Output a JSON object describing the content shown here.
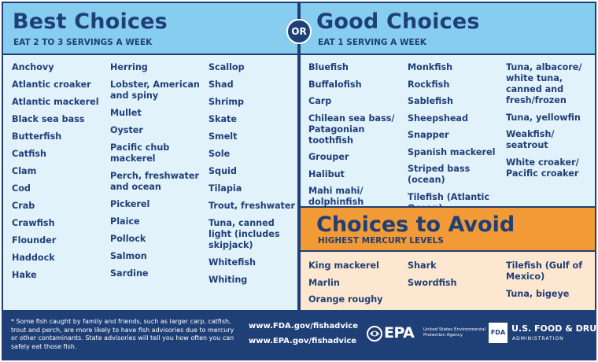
{
  "best": {
    "title": "Best Choices",
    "subtitle": "EAT 2 TO 3 SERVINGS A WEEK",
    "columns": [
      [
        "Anchovy",
        "Atlantic croaker",
        "Atlantic mackerel",
        "Black sea bass",
        "Butterfish",
        "Catfish",
        "Clam",
        "Cod",
        "Crab",
        "Crawfish",
        "Flounder",
        "Haddock",
        "Hake"
      ],
      [
        "Herring",
        "Lobster, American and spiny",
        "Mullet",
        "Oyster",
        "Pacific chub mackerel",
        "Perch, freshwater and ocean",
        "Pickerel",
        "Plaice",
        "Pollock",
        "Salmon",
        "Sardine"
      ],
      [
        "Scallop",
        "Shad",
        "Shrimp",
        "Skate",
        "Smelt",
        "Sole",
        "Squid",
        "Tilapia",
        "Trout, freshwater",
        "Tuna, canned light (includes skipjack)",
        "Whitefish",
        "Whiting"
      ]
    ]
  },
  "or_label": "OR",
  "good": {
    "title": "Good Choices",
    "subtitle": "EAT 1 SERVING A WEEK",
    "columns": [
      [
        "Bluefish",
        "Buffalofish",
        "Carp",
        "Chilean sea bass/ Patagonian toothfish",
        "Grouper",
        "Halibut",
        "Mahi mahi/ dolphinfish"
      ],
      [
        "Monkfish",
        "Rockfish",
        "Sablefish",
        "Sheepshead",
        "Snapper",
        "Spanish mackerel",
        "Striped bass (ocean)",
        "Tilefish (Atlantic Ocean)"
      ],
      [
        "Tuna, albacore/ white tuna, canned and fresh/frozen",
        "Tuna, yellowfin",
        "Weakfish/ seatrout",
        "White croaker/ Pacific croaker"
      ]
    ]
  },
  "avoid": {
    "title": "Choices to Avoid",
    "subtitle": "HIGHEST MERCURY LEVELS",
    "columns": [
      [
        "King mackerel",
        "Marlin",
        "Orange roughy"
      ],
      [
        "Shark",
        "Swordfish"
      ],
      [
        "Tilefish (Gulf of Mexico)",
        "Tuna, bigeye"
      ]
    ]
  },
  "footer": {
    "footnote": "* Some fish caught by family and friends, such as larger carp, catfish, trout and perch, are more likely to have fish advisories due to mercury or other contaminants. State advisories will tell you how often you can safely eat those fish.",
    "url_fda": "www.FDA.gov/fishadvice",
    "url_epa": "www.EPA.gov/fishadvice",
    "epa_logo": "EPA",
    "epa_agency": "United States Environmental Protection Agency",
    "fda_badge": "FDA",
    "fda_name": "U.S. FOOD & DRUG",
    "fda_admin": "ADMINISTRATION"
  },
  "colors": {
    "navy": "#1f3f77",
    "light_blue": "#86cdf0",
    "pale_blue": "#e2f2fb",
    "orange": "#f19a36",
    "peach": "#fde7d0"
  }
}
